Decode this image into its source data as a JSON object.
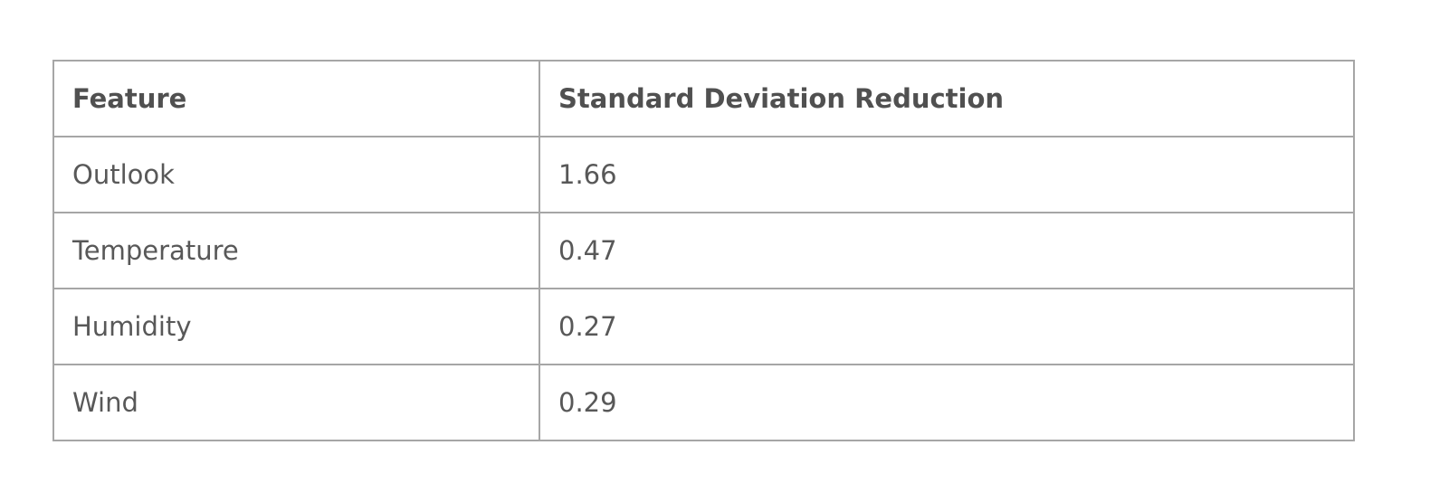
{
  "table": {
    "headers": [
      "Feature",
      "Standard Deviation Reduction"
    ],
    "rows": [
      [
        "Outlook",
        "1.66"
      ],
      [
        "Temperature",
        "0.47"
      ],
      [
        "Humidity",
        "0.27"
      ],
      [
        "Wind",
        "0.29"
      ]
    ]
  }
}
